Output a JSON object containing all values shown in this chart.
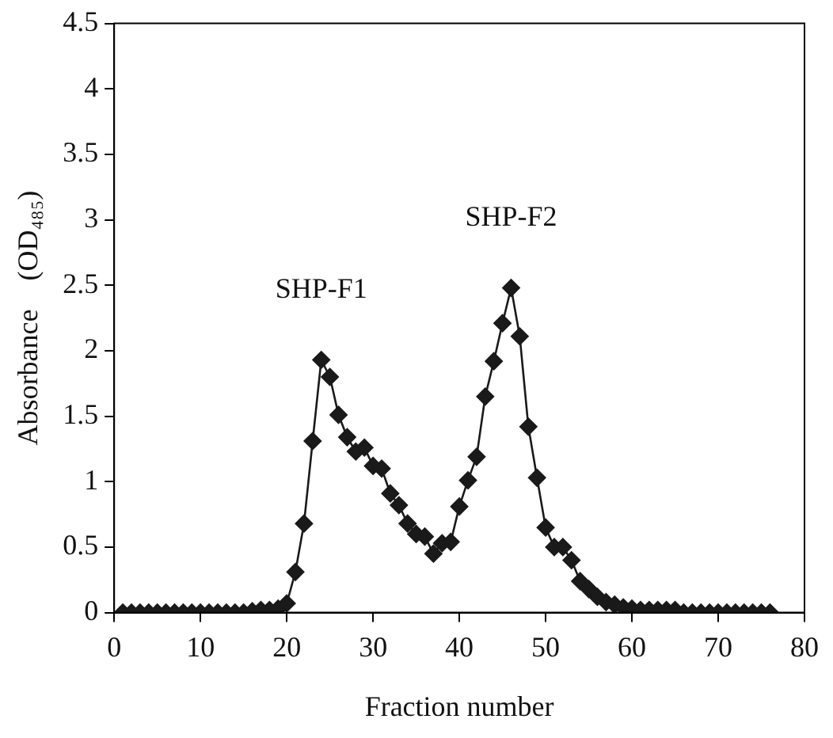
{
  "chart_data": {
    "type": "line",
    "xlabel": "Fraction number",
    "ylabel": "Absorbance    (OD₄₈₅)",
    "x": [
      1,
      2,
      3,
      4,
      5,
      6,
      7,
      8,
      9,
      10,
      11,
      12,
      13,
      14,
      15,
      16,
      17,
      18,
      19,
      20,
      21,
      22,
      23,
      24,
      25,
      26,
      27,
      28,
      29,
      30,
      31,
      32,
      33,
      34,
      35,
      36,
      37,
      38,
      39,
      40,
      41,
      42,
      43,
      44,
      45,
      46,
      47,
      48,
      49,
      50,
      51,
      52,
      53,
      54,
      55,
      56,
      57,
      58,
      59,
      60,
      61,
      62,
      63,
      64,
      65,
      66,
      67,
      68,
      69,
      70,
      71,
      72,
      73,
      74,
      75,
      76
    ],
    "series": [
      {
        "color": "#1a1a1a",
        "values": [
          0,
          0,
          0,
          0,
          0,
          0,
          0,
          0,
          0,
          0,
          0,
          0,
          0,
          0,
          0,
          0.01,
          0.02,
          0.02,
          0.03,
          0.07,
          0.31,
          0.68,
          1.31,
          1.93,
          1.8,
          1.51,
          1.34,
          1.23,
          1.26,
          1.12,
          1.1,
          0.91,
          0.82,
          0.68,
          0.6,
          0.58,
          0.45,
          0.53,
          0.54,
          0.81,
          1.01,
          1.19,
          1.65,
          1.92,
          2.21,
          2.48,
          2.11,
          1.42,
          1.03,
          0.65,
          0.5,
          0.5,
          0.4,
          0.24,
          0.18,
          0.12,
          0.08,
          0.06,
          0.04,
          0.03,
          0.02,
          0.02,
          0.02,
          0.02,
          0.02,
          0,
          0,
          0,
          0,
          0,
          0,
          0,
          0,
          0,
          0,
          0
        ]
      }
    ],
    "xlim": [
      0,
      80
    ],
    "xticks": [
      0,
      10,
      20,
      30,
      40,
      50,
      60,
      70,
      80
    ],
    "ylim": [
      0,
      4.5
    ],
    "yticks": [
      0,
      0.5,
      1,
      1.5,
      2,
      2.5,
      3,
      3.5,
      4,
      4.5
    ],
    "marker": "diamond",
    "line_style": "solid",
    "grid": false,
    "legend": false,
    "annotations": [
      "SHP-F1",
      "SHP-F2"
    ]
  }
}
